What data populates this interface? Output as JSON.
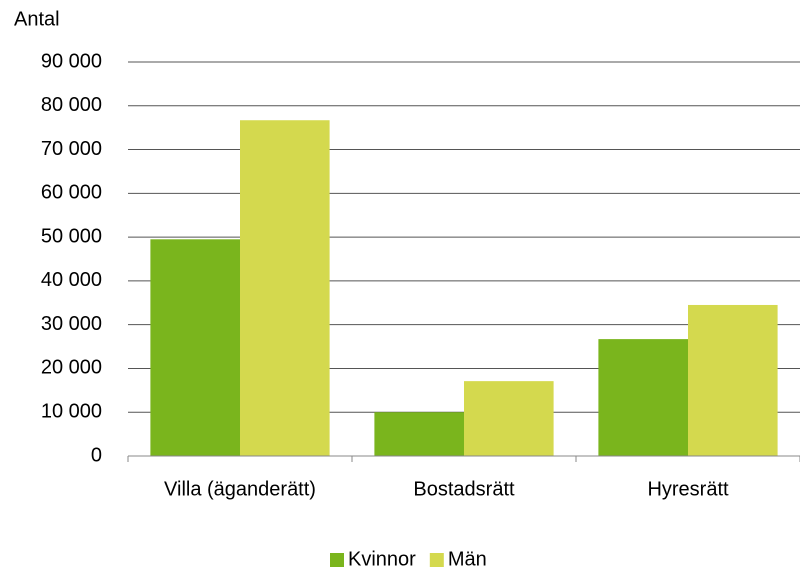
{
  "chart_data": {
    "type": "bar",
    "y_label": "Antal",
    "categories": [
      "Villa (äganderätt)",
      "Bostadsrätt",
      "Hyresrätt"
    ],
    "series": [
      {
        "name": "Kvinnor",
        "color": "#7ab51d",
        "values": [
          49500,
          10000,
          26700
        ]
      },
      {
        "name": "Män",
        "color": "#d4d94e",
        "values": [
          76700,
          17100,
          34500
        ]
      }
    ],
    "ylim": [
      0,
      90000
    ],
    "yticks": [
      0,
      {
        "value": 10000,
        "label": "10 000"
      },
      {
        "value": 20000,
        "label": "20 000"
      },
      {
        "value": 30000,
        "label": "30 000"
      },
      {
        "value": 40000,
        "label": "40 000"
      },
      {
        "value": 50000,
        "label": "50 000"
      },
      {
        "value": 60000,
        "label": "60 000"
      },
      {
        "value": 70000,
        "label": "70 000"
      },
      {
        "value": 80000,
        "label": "80 000"
      },
      {
        "value": 90000,
        "label": "90 000"
      }
    ],
    "grid": true,
    "legend": "bottom"
  }
}
